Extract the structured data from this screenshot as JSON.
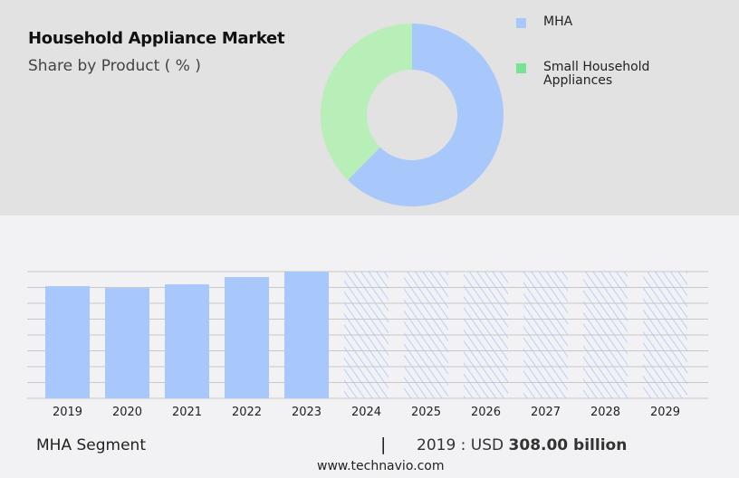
{
  "header": {
    "title": "Household Appliance Market",
    "subtitle": "Share by Product ( % )"
  },
  "chart_data": [
    {
      "type": "pie",
      "variant": "donut",
      "series": [
        {
          "name": "MHA",
          "value": 62.4,
          "color": "#a8c8fc"
        },
        {
          "name": "Small Household Appliances",
          "value": 37.6,
          "color": "#b8eeb8"
        }
      ],
      "legend": {
        "position": "right",
        "items": [
          {
            "label": "MHA",
            "color": "#a8c8fc"
          },
          {
            "label": "Small Household Appliances",
            "color": "#77e495"
          }
        ]
      }
    },
    {
      "type": "bar",
      "categories": [
        "2019",
        "2020",
        "2021",
        "2022",
        "2023",
        "2024",
        "2025",
        "2026",
        "2027",
        "2028",
        "2029"
      ],
      "values": [
        308,
        303,
        313,
        333,
        348,
        null,
        null,
        null,
        null,
        null,
        null
      ],
      "forecast": [
        "2024",
        "2025",
        "2026",
        "2027",
        "2028",
        "2029"
      ],
      "ylim": [
        0,
        348
      ],
      "grid": true,
      "color": "#a8c8fc"
    }
  ],
  "footer": {
    "segment": "MHA Segment",
    "separator": "|",
    "year_label": "2019 : USD",
    "value": "308.00 billion",
    "source": "www.technavio.com"
  }
}
